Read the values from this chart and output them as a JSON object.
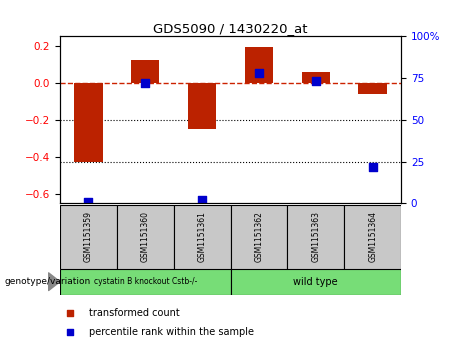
{
  "title": "GDS5090 / 1430220_at",
  "samples": [
    "GSM1151359",
    "GSM1151360",
    "GSM1151361",
    "GSM1151362",
    "GSM1151363",
    "GSM1151364"
  ],
  "transformed_counts": [
    -0.43,
    0.12,
    -0.25,
    0.19,
    0.06,
    -0.06
  ],
  "percentile_ranks": [
    1,
    72,
    2,
    78,
    73,
    22
  ],
  "group_label": "genotype/variation",
  "group_spans": [
    {
      "label": "cystatin B knockout Cstb-/-",
      "start": 0,
      "end": 2
    },
    {
      "label": "wild type",
      "start": 3,
      "end": 5
    }
  ],
  "ylim_left": [
    -0.65,
    0.25
  ],
  "ylim_right": [
    0,
    100
  ],
  "yticks_left": [
    0.2,
    0.0,
    -0.2,
    -0.4,
    -0.6
  ],
  "yticks_right": [
    100,
    75,
    50,
    25,
    0
  ],
  "bar_color": "#BB2200",
  "dot_color": "#0000CC",
  "group_color": "#77DD77",
  "sample_box_color": "#C8C8C8",
  "legend_items": [
    "transformed count",
    "percentile rank within the sample"
  ]
}
